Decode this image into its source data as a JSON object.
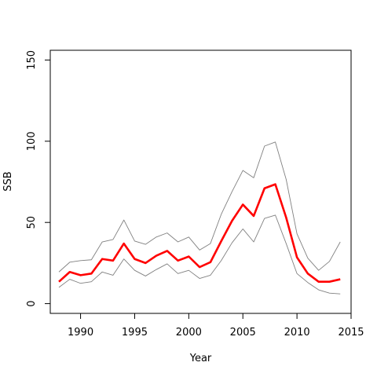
{
  "chart_data": {
    "type": "line",
    "xlabel": "Year",
    "ylabel": "SSB",
    "xlim": [
      1987.2,
      2015
    ],
    "ylim": [
      -6,
      156
    ],
    "x_ticks": [
      1990,
      1995,
      2000,
      2005,
      2010,
      2015
    ],
    "x_tick_labels": [
      "1990",
      "1995",
      "2000",
      "2005",
      "2010",
      "2015"
    ],
    "y_ticks": [
      0,
      50,
      100,
      150
    ],
    "y_tick_labels": [
      "0",
      "50",
      "100",
      "150"
    ],
    "grid": false,
    "legend": "none",
    "x": [
      1988,
      1989,
      1990,
      1991,
      1992,
      1993,
      1994,
      1995,
      1996,
      1997,
      1998,
      1999,
      2000,
      2001,
      2002,
      2003,
      2004,
      2005,
      2006,
      2007,
      2008,
      2009,
      2010,
      2011,
      2012,
      2013,
      2014
    ],
    "series": [
      {
        "role": "upper",
        "color": "#808080",
        "values": [
          19.5,
          25.5,
          26.5,
          27,
          38,
          39.5,
          51.5,
          38.5,
          36.5,
          41,
          43.5,
          38,
          41,
          33,
          37,
          55,
          69,
          82,
          77.5,
          97,
          99.5,
          76.5,
          43,
          28,
          20.5,
          26,
          38
        ]
      },
      {
        "role": "estimate",
        "color": "#ff0000",
        "values": [
          13.5,
          19.5,
          17.5,
          18.5,
          27.5,
          26.5,
          37,
          27.5,
          25,
          29.5,
          32.5,
          26.5,
          29,
          22.5,
          25.5,
          38.5,
          51,
          61,
          54,
          71,
          73.5,
          53,
          28.5,
          18.5,
          13.5,
          13.5,
          15
        ]
      },
      {
        "role": "lower",
        "color": "#808080",
        "values": [
          10,
          15,
          12.5,
          13.5,
          19.5,
          17.5,
          27.5,
          20.5,
          17,
          21,
          24.5,
          18.5,
          20.5,
          15.5,
          17.5,
          26.5,
          37.5,
          46,
          38,
          52.5,
          54.5,
          37,
          18.5,
          13,
          8.5,
          6.5,
          6
        ]
      }
    ]
  }
}
